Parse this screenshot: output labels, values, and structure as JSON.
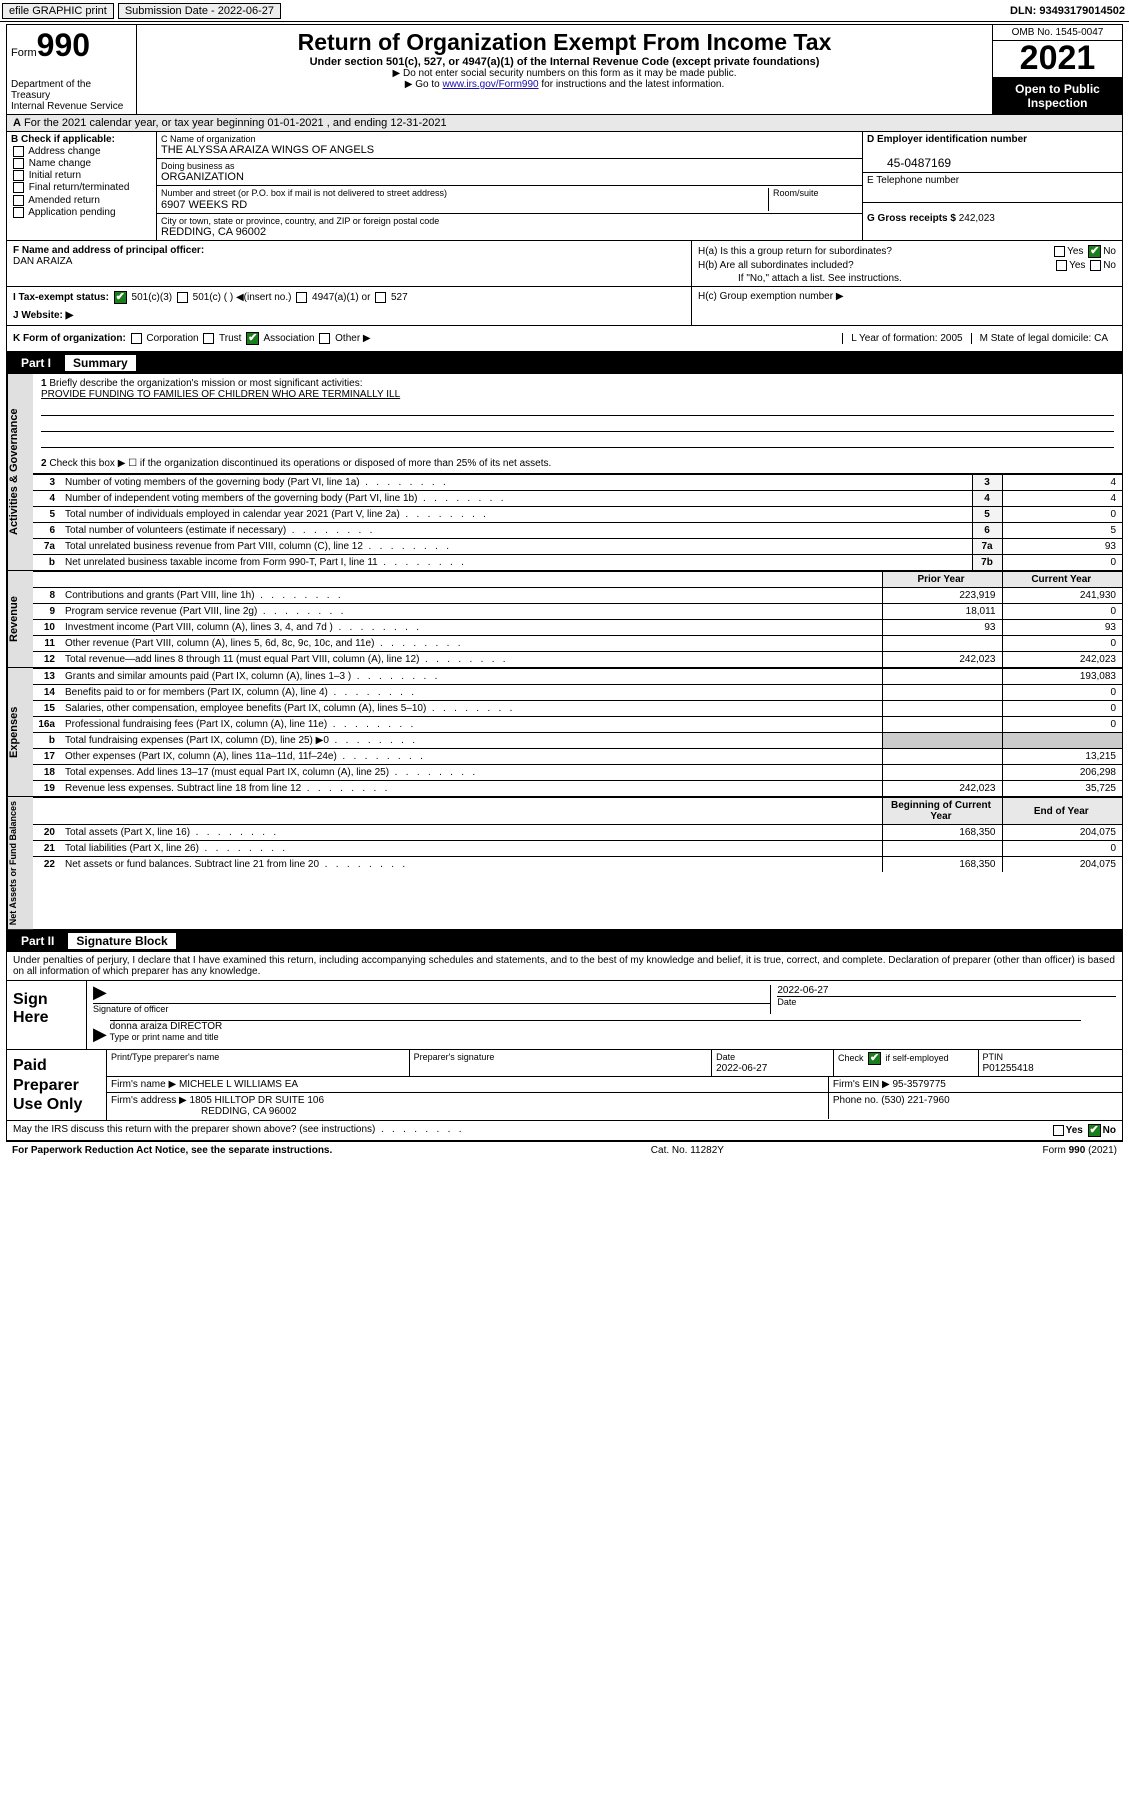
{
  "topbar": {
    "efile": "efile GRAPHIC print",
    "sub_label": "Submission Date - 2022-06-27",
    "dln": "DLN: 93493179014502"
  },
  "header": {
    "form_prefix": "Form",
    "form_num": "990",
    "dept": "Department of the Treasury",
    "irs": "Internal Revenue Service",
    "title": "Return of Organization Exempt From Income Tax",
    "sub": "Under section 501(c), 527, or 4947(a)(1) of the Internal Revenue Code (except private foundations)",
    "note1": "▶ Do not enter social security numbers on this form as it may be made public.",
    "note2_pre": "▶ Go to ",
    "note2_link": "www.irs.gov/Form990",
    "note2_post": " for instructions and the latest information.",
    "omb": "OMB No. 1545-0047",
    "year": "2021",
    "open": "Open to Public Inspection"
  },
  "A": {
    "text": "For the 2021 calendar year, or tax year beginning 01-01-2021   , and ending 12-31-2021"
  },
  "B": {
    "hdr": "B Check if applicable:",
    "opts": [
      "Address change",
      "Name change",
      "Initial return",
      "Final return/terminated",
      "Amended return",
      "Application pending"
    ]
  },
  "C": {
    "name_hint": "C Name of organization",
    "name": "THE ALYSSA ARAIZA WINGS OF ANGELS",
    "dba_hint": "Doing business as",
    "dba": "ORGANIZATION",
    "addr_hint": "Number and street (or P.O. box if mail is not delivered to street address)",
    "room_hint": "Room/suite",
    "addr": "6907 WEEKS RD",
    "city_hint": "City or town, state or province, country, and ZIP or foreign postal code",
    "city": "REDDING, CA  96002"
  },
  "D": {
    "hint": "D Employer identification number",
    "val": "45-0487169"
  },
  "E": {
    "hint": "E Telephone number",
    "val": ""
  },
  "G": {
    "hint": "G Gross receipts $",
    "val": "242,023"
  },
  "F": {
    "hint": "F  Name and address of principal officer:",
    "val": "DAN ARAIZA"
  },
  "H": {
    "a": "H(a)  Is this a group return for subordinates?",
    "b": "H(b)  Are all subordinates included?",
    "bnote": "If \"No,\" attach a list. See instructions.",
    "c": "H(c)  Group exemption number ▶",
    "yes": "Yes",
    "no": "No"
  },
  "I": {
    "lbl": "I    Tax-exempt status:",
    "o1": "501(c)(3)",
    "o2": "501(c) ( ) ◀(insert no.)",
    "o3": "4947(a)(1) or",
    "o4": "527"
  },
  "J": {
    "lbl": "J    Website: ▶"
  },
  "K": {
    "lbl": "K Form of organization:",
    "o1": "Corporation",
    "o2": "Trust",
    "o3": "Association",
    "o4": "Other ▶"
  },
  "L": {
    "lbl": "L Year of formation: 2005"
  },
  "M": {
    "lbl": "M State of legal domicile: CA"
  },
  "part1": {
    "num": "Part I",
    "title": "Summary"
  },
  "gov": {
    "tab": "Activities & Governance",
    "l1": "Briefly describe the organization's mission or most significant activities:",
    "l1v": "PROVIDE FUNDING TO FAMILIES OF CHILDREN WHO ARE TERMINALLY ILL",
    "l2": "Check this box ▶ ☐  if the organization discontinued its operations or disposed of more than 25% of its net assets.",
    "rows": [
      {
        "n": "3",
        "t": "Number of voting members of the governing body (Part VI, line 1a)",
        "r": "3",
        "v": "4"
      },
      {
        "n": "4",
        "t": "Number of independent voting members of the governing body (Part VI, line 1b)",
        "r": "4",
        "v": "4"
      },
      {
        "n": "5",
        "t": "Total number of individuals employed in calendar year 2021 (Part V, line 2a)",
        "r": "5",
        "v": "0"
      },
      {
        "n": "6",
        "t": "Total number of volunteers (estimate if necessary)",
        "r": "6",
        "v": "5"
      },
      {
        "n": "7a",
        "t": "Total unrelated business revenue from Part VIII, column (C), line 12",
        "r": "7a",
        "v": "93"
      },
      {
        "n": "b",
        "t": "Net unrelated business taxable income from Form 990-T, Part I, line 11",
        "r": "7b",
        "v": "0"
      }
    ]
  },
  "rev": {
    "tab": "Revenue",
    "hdr_prior": "Prior Year",
    "hdr_curr": "Current Year",
    "rows": [
      {
        "n": "8",
        "t": "Contributions and grants (Part VIII, line 1h)",
        "p": "223,919",
        "c": "241,930"
      },
      {
        "n": "9",
        "t": "Program service revenue (Part VIII, line 2g)",
        "p": "18,011",
        "c": "0"
      },
      {
        "n": "10",
        "t": "Investment income (Part VIII, column (A), lines 3, 4, and 7d )",
        "p": "93",
        "c": "93"
      },
      {
        "n": "11",
        "t": "Other revenue (Part VIII, column (A), lines 5, 6d, 8c, 9c, 10c, and 11e)",
        "p": "",
        "c": "0"
      },
      {
        "n": "12",
        "t": "Total revenue—add lines 8 through 11 (must equal Part VIII, column (A), line 12)",
        "p": "242,023",
        "c": "242,023"
      }
    ]
  },
  "exp": {
    "tab": "Expenses",
    "rows": [
      {
        "n": "13",
        "t": "Grants and similar amounts paid (Part IX, column (A), lines 1–3 )",
        "p": "",
        "c": "193,083"
      },
      {
        "n": "14",
        "t": "Benefits paid to or for members (Part IX, column (A), line 4)",
        "p": "",
        "c": "0"
      },
      {
        "n": "15",
        "t": "Salaries, other compensation, employee benefits (Part IX, column (A), lines 5–10)",
        "p": "",
        "c": "0"
      },
      {
        "n": "16a",
        "t": "Professional fundraising fees (Part IX, column (A), line 11e)",
        "p": "",
        "c": "0"
      },
      {
        "n": "b",
        "t": "Total fundraising expenses (Part IX, column (D), line 25) ▶0",
        "p": "grey",
        "c": "grey"
      },
      {
        "n": "17",
        "t": "Other expenses (Part IX, column (A), lines 11a–11d, 11f–24e)",
        "p": "",
        "c": "13,215"
      },
      {
        "n": "18",
        "t": "Total expenses. Add lines 13–17 (must equal Part IX, column (A), line 25)",
        "p": "",
        "c": "206,298"
      },
      {
        "n": "19",
        "t": "Revenue less expenses. Subtract line 18 from line 12",
        "p": "242,023",
        "c": "35,725"
      }
    ]
  },
  "net": {
    "tab": "Net Assets or Fund Balances",
    "hdr_beg": "Beginning of Current Year",
    "hdr_end": "End of Year",
    "rows": [
      {
        "n": "20",
        "t": "Total assets (Part X, line 16)",
        "p": "168,350",
        "c": "204,075"
      },
      {
        "n": "21",
        "t": "Total liabilities (Part X, line 26)",
        "p": "",
        "c": "0"
      },
      {
        "n": "22",
        "t": "Net assets or fund balances. Subtract line 21 from line 20",
        "p": "168,350",
        "c": "204,075"
      }
    ]
  },
  "part2": {
    "num": "Part II",
    "title": "Signature Block"
  },
  "sig": {
    "intro": "Under penalties of perjury, I declare that I have examined this return, including accompanying schedules and statements, and to the best of my knowledge and belief, it is true, correct, and complete. Declaration of preparer (other than officer) is based on all information of which preparer has any knowledge.",
    "here": "Sign Here",
    "of_sig": "Signature of officer",
    "date": "Date",
    "date_v": "2022-06-27",
    "name": "donna araiza  DIRECTOR",
    "name_hint": "Type or print name and title"
  },
  "paid": {
    "lbl": "Paid Preparer Use Only",
    "h1": "Print/Type preparer's name",
    "h2": "Preparer's signature",
    "h3": "Date",
    "h3v": "2022-06-27",
    "h4": "Check ",
    "h4b": " if self-employed",
    "h5": "PTIN",
    "h5v": "P01255418",
    "firm_lbl": "Firm's name   ▶",
    "firm": "MICHELE L WILLIAMS EA",
    "ein_lbl": "Firm's EIN ▶",
    "ein": "95-3579775",
    "addr_lbl": "Firm's address ▶",
    "addr1": "1805 HILLTOP DR SUITE 106",
    "addr2": "REDDING, CA  96002",
    "phone_lbl": "Phone no.",
    "phone": "(530) 221-7960"
  },
  "discuss": "May the IRS discuss this return with the preparer shown above? (see instructions)",
  "footer": {
    "pra": "For Paperwork Reduction Act Notice, see the separate instructions.",
    "cat": "Cat. No. 11282Y",
    "form": "Form 990 (2021)"
  }
}
